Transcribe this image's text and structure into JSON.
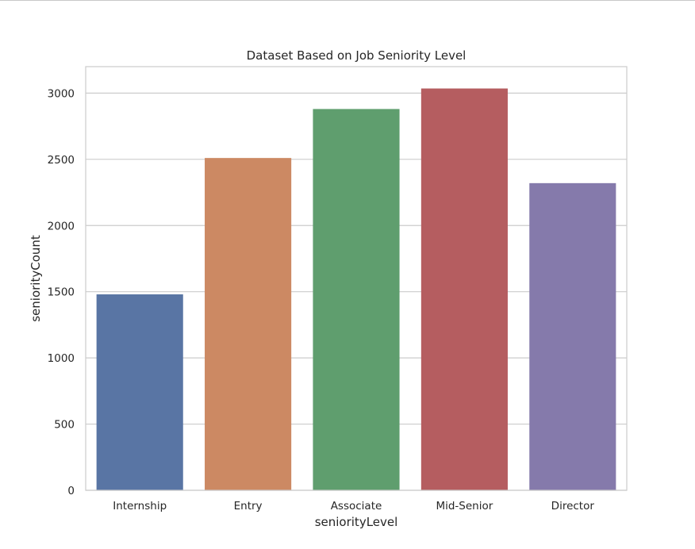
{
  "chart_data": {
    "type": "bar",
    "title": "Dataset Based on Job Seniority Level",
    "xlabel": "seniorityLevel",
    "ylabel": "seniorityCount",
    "categories": [
      "Internship",
      "Entry",
      "Associate",
      "Mid-Senior",
      "Director"
    ],
    "values": [
      1480,
      2510,
      2880,
      3035,
      2320
    ],
    "colors": [
      "#5975a4",
      "#cc8963",
      "#5f9e6e",
      "#b55d60",
      "#857aab"
    ],
    "ylim": [
      0,
      3200
    ],
    "yticks": [
      0,
      500,
      1000,
      1500,
      2000,
      2500,
      3000
    ],
    "ytick_labels": [
      "0",
      "500",
      "1000",
      "1500",
      "2000",
      "2500",
      "3000"
    ],
    "grid": "horizontal",
    "style": "seaborn-whitegrid"
  }
}
